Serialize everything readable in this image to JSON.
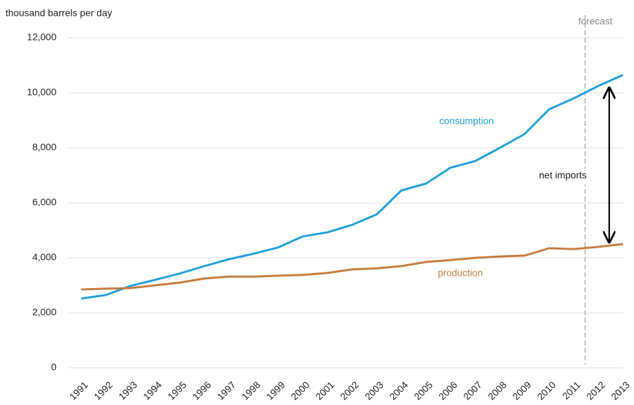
{
  "chart_data": {
    "type": "line",
    "y_axis_label": "thousand barrels per day",
    "categories": [
      "1991",
      "1992",
      "1993",
      "1994",
      "1995",
      "1996",
      "1997",
      "1998",
      "1999",
      "2000",
      "2001",
      "2002",
      "2003",
      "2004",
      "2005",
      "2006",
      "2007",
      "2008",
      "2009",
      "2010",
      "2011",
      "2012",
      "2013"
    ],
    "series": [
      {
        "name": "consumption",
        "color": "#1ea0db",
        "values": [
          2520,
          2650,
          2980,
          3200,
          3430,
          3700,
          3950,
          4150,
          4380,
          4780,
          4930,
          5200,
          5580,
          6450,
          6700,
          7280,
          7520,
          8000,
          8500,
          9400,
          9800,
          10250,
          10650
        ]
      },
      {
        "name": "production",
        "color": "#c47c3e",
        "values": [
          2850,
          2880,
          2900,
          3000,
          3100,
          3250,
          3320,
          3320,
          3350,
          3380,
          3450,
          3580,
          3620,
          3700,
          3850,
          3920,
          4000,
          4050,
          4080,
          4350,
          4320,
          4400,
          4500
        ]
      }
    ],
    "ylim": [
      0,
      12000
    ],
    "yticks": [
      0,
      {
        "value": 2000,
        "label": "2,000"
      },
      {
        "value": 4000,
        "label": "4,000"
      },
      {
        "value": 6000,
        "label": "6,000"
      },
      {
        "value": 8000,
        "label": "8,000"
      },
      {
        "value": 10000,
        "label": "10,000"
      },
      {
        "value": 12000,
        "label": "12,000"
      }
    ],
    "grid": true,
    "annotations": [
      "forecast",
      "net imports"
    ]
  }
}
